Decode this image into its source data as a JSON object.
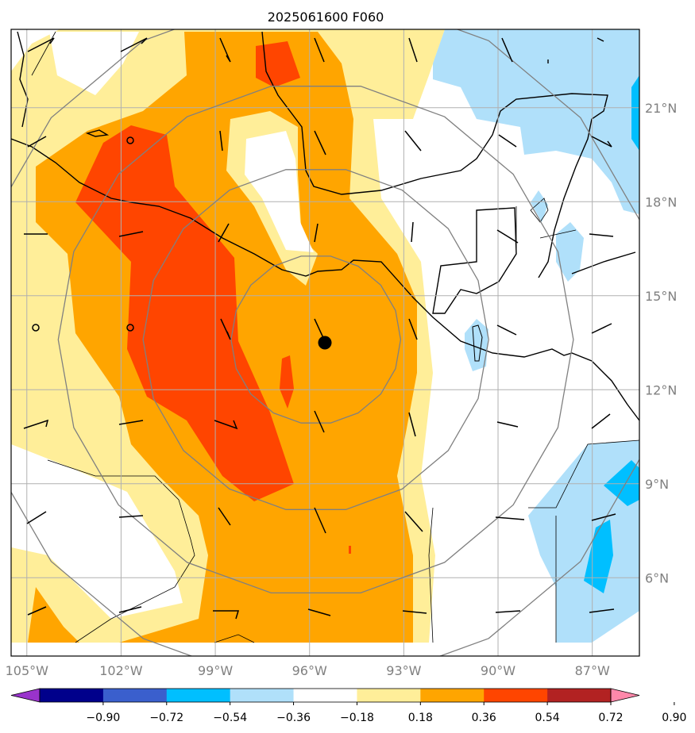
{
  "title": "2025061600 F060",
  "map": {
    "lon_range": [
      -105.5,
      -85.5
    ],
    "lat_range": [
      3.5,
      23.5
    ],
    "lon_ticks": [
      -105,
      -102,
      -99,
      -96,
      -93,
      -90,
      -87
    ],
    "lon_tick_labels": [
      "105°W",
      "102°W",
      "99°W",
      "96°W",
      "93°W",
      "90°W",
      "87°W"
    ],
    "lat_ticks": [
      6,
      9,
      12,
      15,
      18,
      21
    ],
    "lat_tick_labels": [
      "6°N",
      "9°N",
      "12°N",
      "15°N",
      "18°N",
      "21°N"
    ],
    "gridlines": true,
    "center_marker": {
      "lon": -95.8,
      "lat": 13.6
    },
    "range_rings_deg": [
      2.7,
      5.5,
      8.2,
      11
    ]
  },
  "colorbar": {
    "colors": [
      "#9933cc",
      "#00008b",
      "#3a5fcd",
      "#00bfff",
      "#b0e0fa",
      "#ffffff",
      "#ffee99",
      "#ffa500",
      "#ff4500",
      "#b22222",
      "#ff88aa"
    ],
    "tick_labels": [
      "−0.90",
      "−0.72",
      "−0.54",
      "−0.36",
      "−0.18",
      "0.18",
      "0.36",
      "0.54",
      "0.72",
      "0.90"
    ],
    "extend": "both"
  },
  "colors": {
    "orange": "#ffa500",
    "red": "#ff4500",
    "yellow": "#ffee99",
    "lightblue": "#b0e0fa",
    "blue": "#00bfff",
    "grid": "#b0b0b0",
    "rings": "#808080"
  }
}
